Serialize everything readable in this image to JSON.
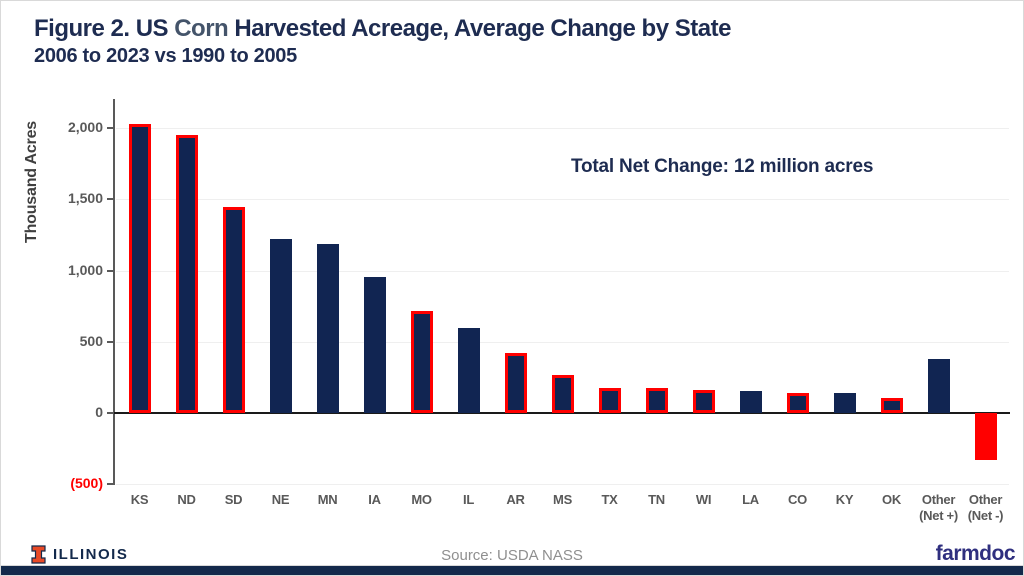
{
  "title": {
    "part1": "Figure 2. US ",
    "corn": "Corn",
    "part2": " Harvested Acreage, Average Change by State",
    "subtitle": "2006 to 2023 vs 1990 to 2005"
  },
  "chart_data": {
    "type": "bar",
    "title": "Figure 2. US Corn Harvested Acreage, Average Change by State",
    "subtitle": "2006 to 2023 vs 1990 to 2005",
    "ylabel": "Thousand Acres",
    "xlabel": "",
    "annotation": "Total Net Change: 12 million acres",
    "units": "thousand acres",
    "grid": "horizontal, faint",
    "legend": "none",
    "ylim": [
      -500,
      2150
    ],
    "yticks": [
      {
        "value": 2000,
        "label": "2,000"
      },
      {
        "value": 1500,
        "label": "1,500"
      },
      {
        "value": 1000,
        "label": "1,000"
      },
      {
        "value": 500,
        "label": "500"
      },
      {
        "value": 0,
        "label": "0"
      },
      {
        "value": -500,
        "label": "(500)"
      }
    ],
    "categories": [
      "KS",
      "ND",
      "SD",
      "NE",
      "MN",
      "IA",
      "MO",
      "IL",
      "AR",
      "MS",
      "TX",
      "TN",
      "WI",
      "LA",
      "CO",
      "KY",
      "OK",
      "Other\n(Net +)",
      "Other\n(Net -)"
    ],
    "values": [
      2025,
      1950,
      1445,
      1220,
      1185,
      955,
      715,
      600,
      420,
      270,
      175,
      172,
      158,
      155,
      143,
      138,
      105,
      380,
      -330
    ],
    "red_outline": [
      true,
      true,
      true,
      false,
      false,
      false,
      true,
      false,
      true,
      true,
      true,
      true,
      true,
      false,
      true,
      false,
      true,
      false,
      false
    ],
    "colors": {
      "bar_fill_navy": "#112552",
      "bar_fill_negative_red": "#ff0000",
      "bar_outline_red": "#ff0000",
      "title_navy": "#1e2c51",
      "corn_gray_blue": "#44546a",
      "axis_label_gray": "#595959",
      "negative_tick_label_red": "#ff0000"
    }
  },
  "footer": {
    "brand_left": "ILLINOIS",
    "source": "Source: USDA NASS",
    "brand_right": "farmdoc",
    "illinois_orange": "#e84a27",
    "illinois_navy": "#13294b",
    "farmdoc_blue": "#2f2f7f"
  }
}
